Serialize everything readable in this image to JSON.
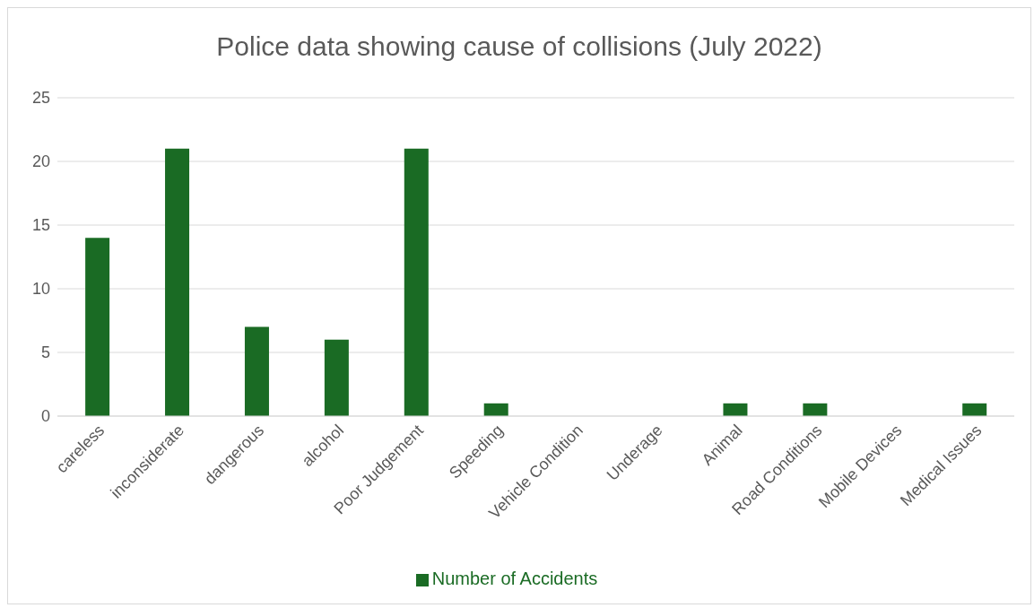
{
  "chart_data": {
    "type": "bar",
    "title": "Police data showing cause of collisions (July 2022)",
    "categories": [
      "careless",
      "inconsiderate",
      "dangerous",
      "alcohol",
      "Poor Judgement",
      "Speeding",
      "Vehicle Condition",
      "Underage",
      "Animal",
      "Road Conditions",
      "Mobile Devices",
      "Medical Issues"
    ],
    "series": [
      {
        "name": "Number of Accidents",
        "color": "#1a6b24",
        "values": [
          14,
          21,
          7,
          6,
          21,
          1,
          0,
          0,
          1,
          1,
          0,
          1
        ]
      }
    ],
    "ylim": [
      0,
      25
    ],
    "yticks": [
      0,
      5,
      10,
      15,
      20,
      25
    ],
    "grid": "y",
    "legend": "bottom"
  }
}
